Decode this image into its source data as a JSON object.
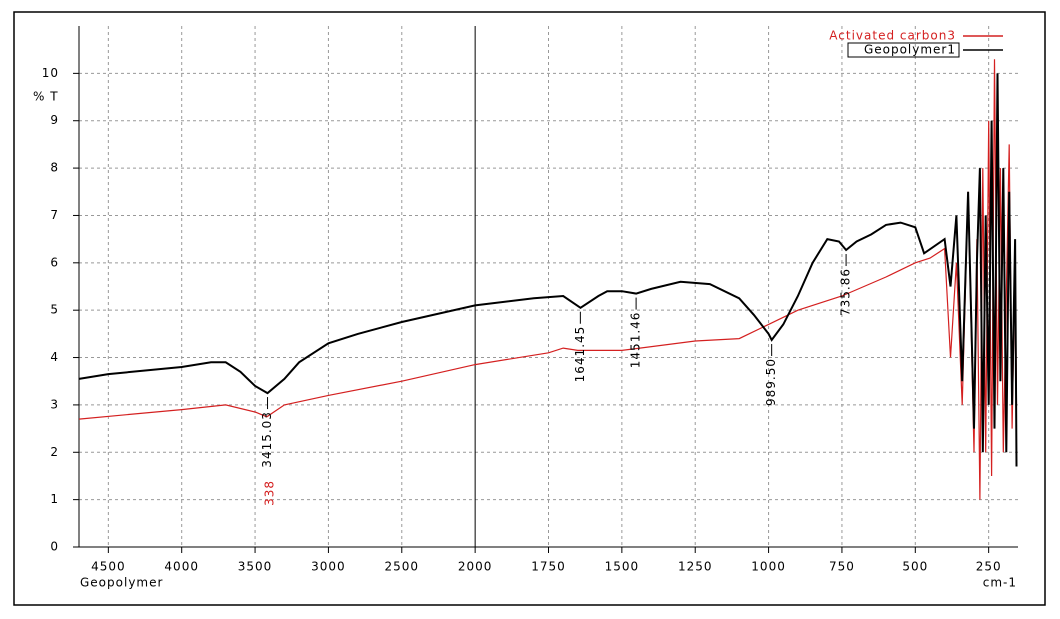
{
  "chart_data": {
    "type": "line",
    "x_label": "Geopolymer",
    "x_unit": "cm-1",
    "y_label": "% T",
    "xlim": [
      4700,
      150
    ],
    "xbreak": 2000,
    "xticks": [
      4500,
      4000,
      3500,
      3000,
      2500,
      2000,
      1750,
      1500,
      1250,
      1000,
      750,
      500,
      250
    ],
    "ylim": [
      0,
      11
    ],
    "yticks": [
      0,
      1,
      2,
      3,
      4,
      5,
      6,
      7,
      8,
      9,
      10
    ],
    "grid": true,
    "legend": "top-right",
    "series": [
      {
        "name": "Activated carbon3",
        "color": "#d42020",
        "x": [
          4700,
          4000,
          3700,
          3500,
          3420,
          3300,
          3000,
          2500,
          2000,
          1750,
          1700,
          1650,
          1500,
          1250,
          1100,
          1000,
          900,
          750,
          600,
          500,
          450,
          400,
          380,
          360,
          340,
          320,
          300,
          290,
          280,
          270,
          260,
          250,
          240,
          230,
          220,
          210,
          200,
          180,
          170,
          160,
          155
        ],
        "values": [
          2.7,
          2.9,
          3.0,
          2.85,
          2.75,
          3.0,
          3.2,
          3.5,
          3.85,
          4.1,
          4.2,
          4.15,
          4.15,
          4.35,
          4.4,
          4.7,
          5.0,
          5.3,
          5.7,
          6.0,
          6.1,
          6.3,
          4.0,
          6.0,
          3.0,
          7.5,
          2.0,
          6.5,
          1.0,
          8.0,
          2.0,
          9.0,
          1.5,
          10.3,
          3.0,
          8.0,
          2.0,
          8.5,
          2.5,
          6.0,
          3.0
        ]
      },
      {
        "name": "Geopolymer1",
        "color": "#000000",
        "x": [
          4700,
          4500,
          4000,
          3800,
          3700,
          3600,
          3500,
          3415,
          3300,
          3200,
          3000,
          2800,
          2500,
          2000,
          1800,
          1700,
          1641,
          1580,
          1550,
          1500,
          1451,
          1400,
          1300,
          1200,
          1100,
          1050,
          1000,
          989.5,
          950,
          900,
          850,
          800,
          760,
          735.86,
          700,
          650,
          600,
          550,
          500,
          470,
          400,
          380,
          360,
          340,
          320,
          300,
          290,
          280,
          270,
          260,
          250,
          240,
          230,
          220,
          210,
          200,
          190,
          180,
          170,
          160,
          155
        ],
        "values": [
          3.55,
          3.65,
          3.8,
          3.9,
          3.9,
          3.7,
          3.4,
          3.25,
          3.55,
          3.9,
          4.3,
          4.5,
          4.75,
          5.1,
          5.25,
          5.3,
          5.05,
          5.3,
          5.4,
          5.4,
          5.35,
          5.45,
          5.6,
          5.55,
          5.25,
          4.9,
          4.5,
          4.37,
          4.7,
          5.3,
          6.0,
          6.5,
          6.45,
          6.27,
          6.45,
          6.6,
          6.8,
          6.85,
          6.75,
          6.2,
          6.5,
          5.5,
          7.0,
          3.5,
          7.5,
          2.5,
          6.0,
          8.0,
          2.0,
          7.0,
          3.0,
          9.0,
          2.5,
          10.0,
          3.5,
          8.0,
          2.0,
          7.5,
          3.0,
          6.5,
          1.7
        ]
      }
    ],
    "annotations": [
      {
        "x": 3415.03,
        "label": "3415.03",
        "series": 1
      },
      {
        "x": 1641.45,
        "label": "1641.45",
        "series": 1
      },
      {
        "x": 1451.46,
        "label": "1451.46",
        "series": 1
      },
      {
        "x": 989.5,
        "label": "989.50",
        "series": 1
      },
      {
        "x": 735.86,
        "label": "735.86",
        "series": 1
      },
      {
        "label": "338",
        "series": 0
      }
    ]
  }
}
